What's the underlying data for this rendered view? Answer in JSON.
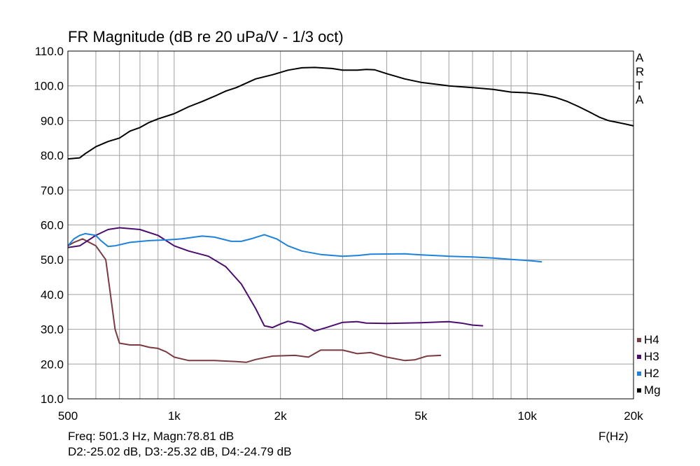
{
  "chart_data": {
    "type": "line",
    "title": "FR Magnitude (dB re 20 uPa/V - 1/3 oct)",
    "xlabel": "F(Hz)",
    "ylabel": "",
    "xscale": "log",
    "xlim": [
      500,
      20000
    ],
    "ylim": [
      10,
      110
    ],
    "grid": true,
    "legend_position": "bottom-right",
    "xticks": [
      {
        "value": 500,
        "label": "500"
      },
      {
        "value": 1000,
        "label": "1k"
      },
      {
        "value": 2000,
        "label": "2k"
      },
      {
        "value": 5000,
        "label": "5k"
      },
      {
        "value": 10000,
        "label": "10k"
      },
      {
        "value": 20000,
        "label": "20k"
      }
    ],
    "yticks": [
      {
        "value": 110,
        "label": "110.0"
      },
      {
        "value": 100,
        "label": "100.0"
      },
      {
        "value": 90,
        "label": "90.0"
      },
      {
        "value": 80,
        "label": "80.0"
      },
      {
        "value": 70,
        "label": "70.0"
      },
      {
        "value": 60,
        "label": "60.0"
      },
      {
        "value": 50,
        "label": "50.0"
      },
      {
        "value": 40,
        "label": "40.0"
      },
      {
        "value": 30,
        "label": "30.0"
      },
      {
        "value": 20,
        "label": "20.0"
      },
      {
        "value": 10,
        "label": "10.0"
      }
    ],
    "series": [
      {
        "name": "Mg",
        "color": "#000000",
        "points": [
          [
            500,
            79
          ],
          [
            540,
            79.3
          ],
          [
            560,
            80.5
          ],
          [
            600,
            82.5
          ],
          [
            650,
            84
          ],
          [
            700,
            85
          ],
          [
            750,
            87
          ],
          [
            800,
            88
          ],
          [
            850,
            89.5
          ],
          [
            900,
            90.5
          ],
          [
            1000,
            92
          ],
          [
            1100,
            94
          ],
          [
            1200,
            95.5
          ],
          [
            1300,
            97
          ],
          [
            1400,
            98.5
          ],
          [
            1500,
            99.5
          ],
          [
            1700,
            102
          ],
          [
            1900,
            103.2
          ],
          [
            2100,
            104.5
          ],
          [
            2300,
            105.2
          ],
          [
            2500,
            105.3
          ],
          [
            2800,
            105
          ],
          [
            3000,
            104.5
          ],
          [
            3300,
            104.5
          ],
          [
            3500,
            104.7
          ],
          [
            3700,
            104.6
          ],
          [
            4000,
            103.5
          ],
          [
            4500,
            102
          ],
          [
            5000,
            101
          ],
          [
            6000,
            100
          ],
          [
            7000,
            99.5
          ],
          [
            8000,
            99
          ],
          [
            9000,
            98.2
          ],
          [
            10000,
            98
          ],
          [
            11000,
            97.5
          ],
          [
            12000,
            96.7
          ],
          [
            13000,
            95.5
          ],
          [
            14000,
            94
          ],
          [
            15000,
            92.5
          ],
          [
            16000,
            91
          ],
          [
            17000,
            90
          ],
          [
            18000,
            89.5
          ],
          [
            19000,
            89
          ],
          [
            20000,
            88.5
          ]
        ]
      },
      {
        "name": "H2",
        "color": "#1e82dc",
        "points": [
          [
            500,
            54
          ],
          [
            520,
            56
          ],
          [
            540,
            57
          ],
          [
            560,
            57.5
          ],
          [
            600,
            57
          ],
          [
            620,
            55.5
          ],
          [
            650,
            53.8
          ],
          [
            680,
            54
          ],
          [
            750,
            55
          ],
          [
            850,
            55.5
          ],
          [
            950,
            55.7
          ],
          [
            1050,
            56
          ],
          [
            1200,
            56.8
          ],
          [
            1300,
            56.5
          ],
          [
            1450,
            55.3
          ],
          [
            1550,
            55.3
          ],
          [
            1650,
            56
          ],
          [
            1800,
            57.2
          ],
          [
            1950,
            56
          ],
          [
            2100,
            54
          ],
          [
            2300,
            52.5
          ],
          [
            2600,
            51.5
          ],
          [
            3000,
            51
          ],
          [
            3300,
            51.2
          ],
          [
            3600,
            51.6
          ],
          [
            4500,
            51.7
          ],
          [
            5000,
            51.4
          ],
          [
            6000,
            51
          ],
          [
            7000,
            50.8
          ],
          [
            8000,
            50.5
          ],
          [
            9000,
            50.1
          ],
          [
            10000,
            49.8
          ],
          [
            11000,
            49.4
          ]
        ]
      },
      {
        "name": "H3",
        "color": "#4b0e6e",
        "points": [
          [
            500,
            53.5
          ],
          [
            540,
            54
          ],
          [
            600,
            57
          ],
          [
            650,
            58.7
          ],
          [
            700,
            59.2
          ],
          [
            800,
            58.7
          ],
          [
            900,
            57
          ],
          [
            1000,
            54
          ],
          [
            1100,
            52.5
          ],
          [
            1250,
            51
          ],
          [
            1400,
            48
          ],
          [
            1550,
            43
          ],
          [
            1700,
            36
          ],
          [
            1800,
            31
          ],
          [
            1900,
            30.5
          ],
          [
            2000,
            31.5
          ],
          [
            2100,
            32.3
          ],
          [
            2300,
            31.5
          ],
          [
            2500,
            29.5
          ],
          [
            2700,
            30.5
          ],
          [
            3000,
            32
          ],
          [
            3300,
            32.2
          ],
          [
            3500,
            31.8
          ],
          [
            4000,
            31.7
          ],
          [
            5000,
            31.9
          ],
          [
            6000,
            32.2
          ],
          [
            6500,
            31.8
          ],
          [
            7000,
            31.2
          ],
          [
            7500,
            31
          ]
        ]
      },
      {
        "name": "H4",
        "color": "#7a3a40",
        "points": [
          [
            500,
            54
          ],
          [
            520,
            55
          ],
          [
            550,
            56
          ],
          [
            600,
            54
          ],
          [
            640,
            50
          ],
          [
            660,
            40
          ],
          [
            680,
            30
          ],
          [
            700,
            26
          ],
          [
            750,
            25.5
          ],
          [
            800,
            25.5
          ],
          [
            850,
            24.8
          ],
          [
            900,
            24.5
          ],
          [
            950,
            23.5
          ],
          [
            1000,
            22
          ],
          [
            1100,
            21
          ],
          [
            1300,
            21
          ],
          [
            1500,
            20.7
          ],
          [
            1600,
            20.5
          ],
          [
            1700,
            21.3
          ],
          [
            1900,
            22.3
          ],
          [
            2200,
            22.5
          ],
          [
            2400,
            22
          ],
          [
            2600,
            24
          ],
          [
            3000,
            24
          ],
          [
            3300,
            23
          ],
          [
            3600,
            23.3
          ],
          [
            4000,
            22
          ],
          [
            4500,
            21
          ],
          [
            4800,
            21.2
          ],
          [
            5200,
            22.3
          ],
          [
            5700,
            22.5
          ]
        ]
      }
    ],
    "legend_order": [
      "H4",
      "H3",
      "H2",
      "Mg"
    ]
  },
  "watermark_letters": [
    "A",
    "R",
    "T",
    "A"
  ],
  "readout": {
    "line1": "Freq: 501.3 Hz, Magn:78.81 dB",
    "line2": "D2:-25.02 dB, D3:-25.32 dB, D4:-24.79 dB"
  }
}
